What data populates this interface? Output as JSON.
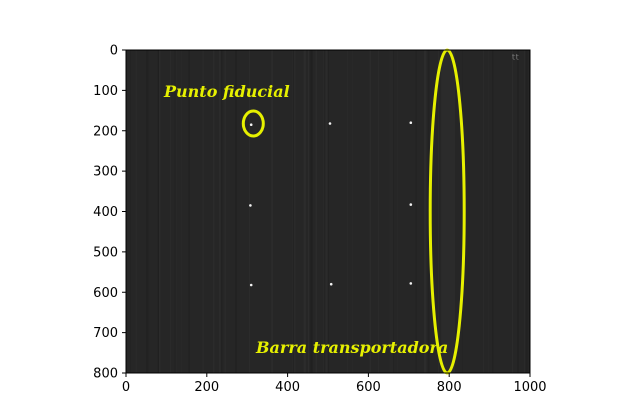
{
  "chart_data": {
    "type": "image",
    "xlim": [
      0,
      1000
    ],
    "ylim": [
      800,
      0
    ],
    "y_axis_inverted": true,
    "x_ticks": [
      0,
      200,
      400,
      600,
      800,
      1000
    ],
    "y_ticks": [
      0,
      100,
      200,
      300,
      400,
      500,
      600,
      700,
      800
    ],
    "image_width": 1000,
    "image_height": 800,
    "image_background": "#262626",
    "highlight_color": "#e6f000",
    "fiducial_points": [
      {
        "x": 310,
        "y": 185
      },
      {
        "x": 505,
        "y": 182
      },
      {
        "x": 705,
        "y": 180
      },
      {
        "x": 308,
        "y": 385
      },
      {
        "x": 705,
        "y": 383
      },
      {
        "x": 310,
        "y": 582
      },
      {
        "x": 508,
        "y": 580
      },
      {
        "x": 705,
        "y": 578
      }
    ],
    "annotations": [
      {
        "id": "fiducial",
        "text": "Punto fiducial",
        "target": {
          "x": 315,
          "y": 182
        }
      },
      {
        "id": "conveyor",
        "text": "Barra transportadora",
        "target": {
          "x": 795,
          "y": 400
        }
      }
    ],
    "corner_mark": "ᵗᵗ"
  }
}
